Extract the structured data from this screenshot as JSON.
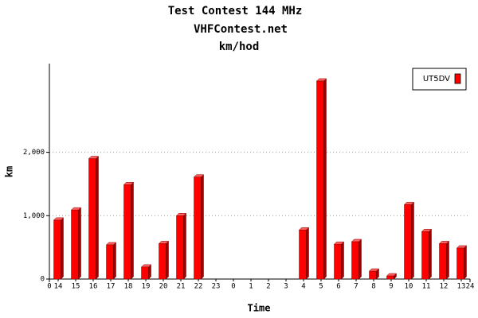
{
  "chart_data": {
    "type": "bar",
    "title": "Test Contest 144 MHz",
    "subtitle": "VHFContest.net",
    "unit_title": "km/hod",
    "y_label": "km",
    "x_label": "Time",
    "categories": [
      "14",
      "15",
      "16",
      "17",
      "18",
      "19",
      "20",
      "21",
      "22",
      "23",
      "0",
      "1",
      "2",
      "3",
      "4",
      "5",
      "6",
      "7",
      "8",
      "9",
      "10",
      "11",
      "12",
      "13"
    ],
    "series": [
      {
        "name": "UT5DV",
        "color": "#ff0000",
        "values": [
          930,
          1090,
          1900,
          540,
          1490,
          190,
          560,
          1000,
          1610,
          0,
          0,
          0,
          0,
          0,
          775,
          3125,
          550,
          590,
          125,
          50,
          1175,
          750,
          560,
          490
        ]
      }
    ],
    "xlim": [
      0,
      24
    ],
    "xticks": [
      0,
      24
    ],
    "ylim": [
      0,
      3400
    ],
    "yticks": [
      0,
      {
        "value": 1000,
        "label": "1,000"
      },
      {
        "value": 2000,
        "label": "2,000"
      }
    ],
    "grid": true,
    "legend": "top-right"
  }
}
